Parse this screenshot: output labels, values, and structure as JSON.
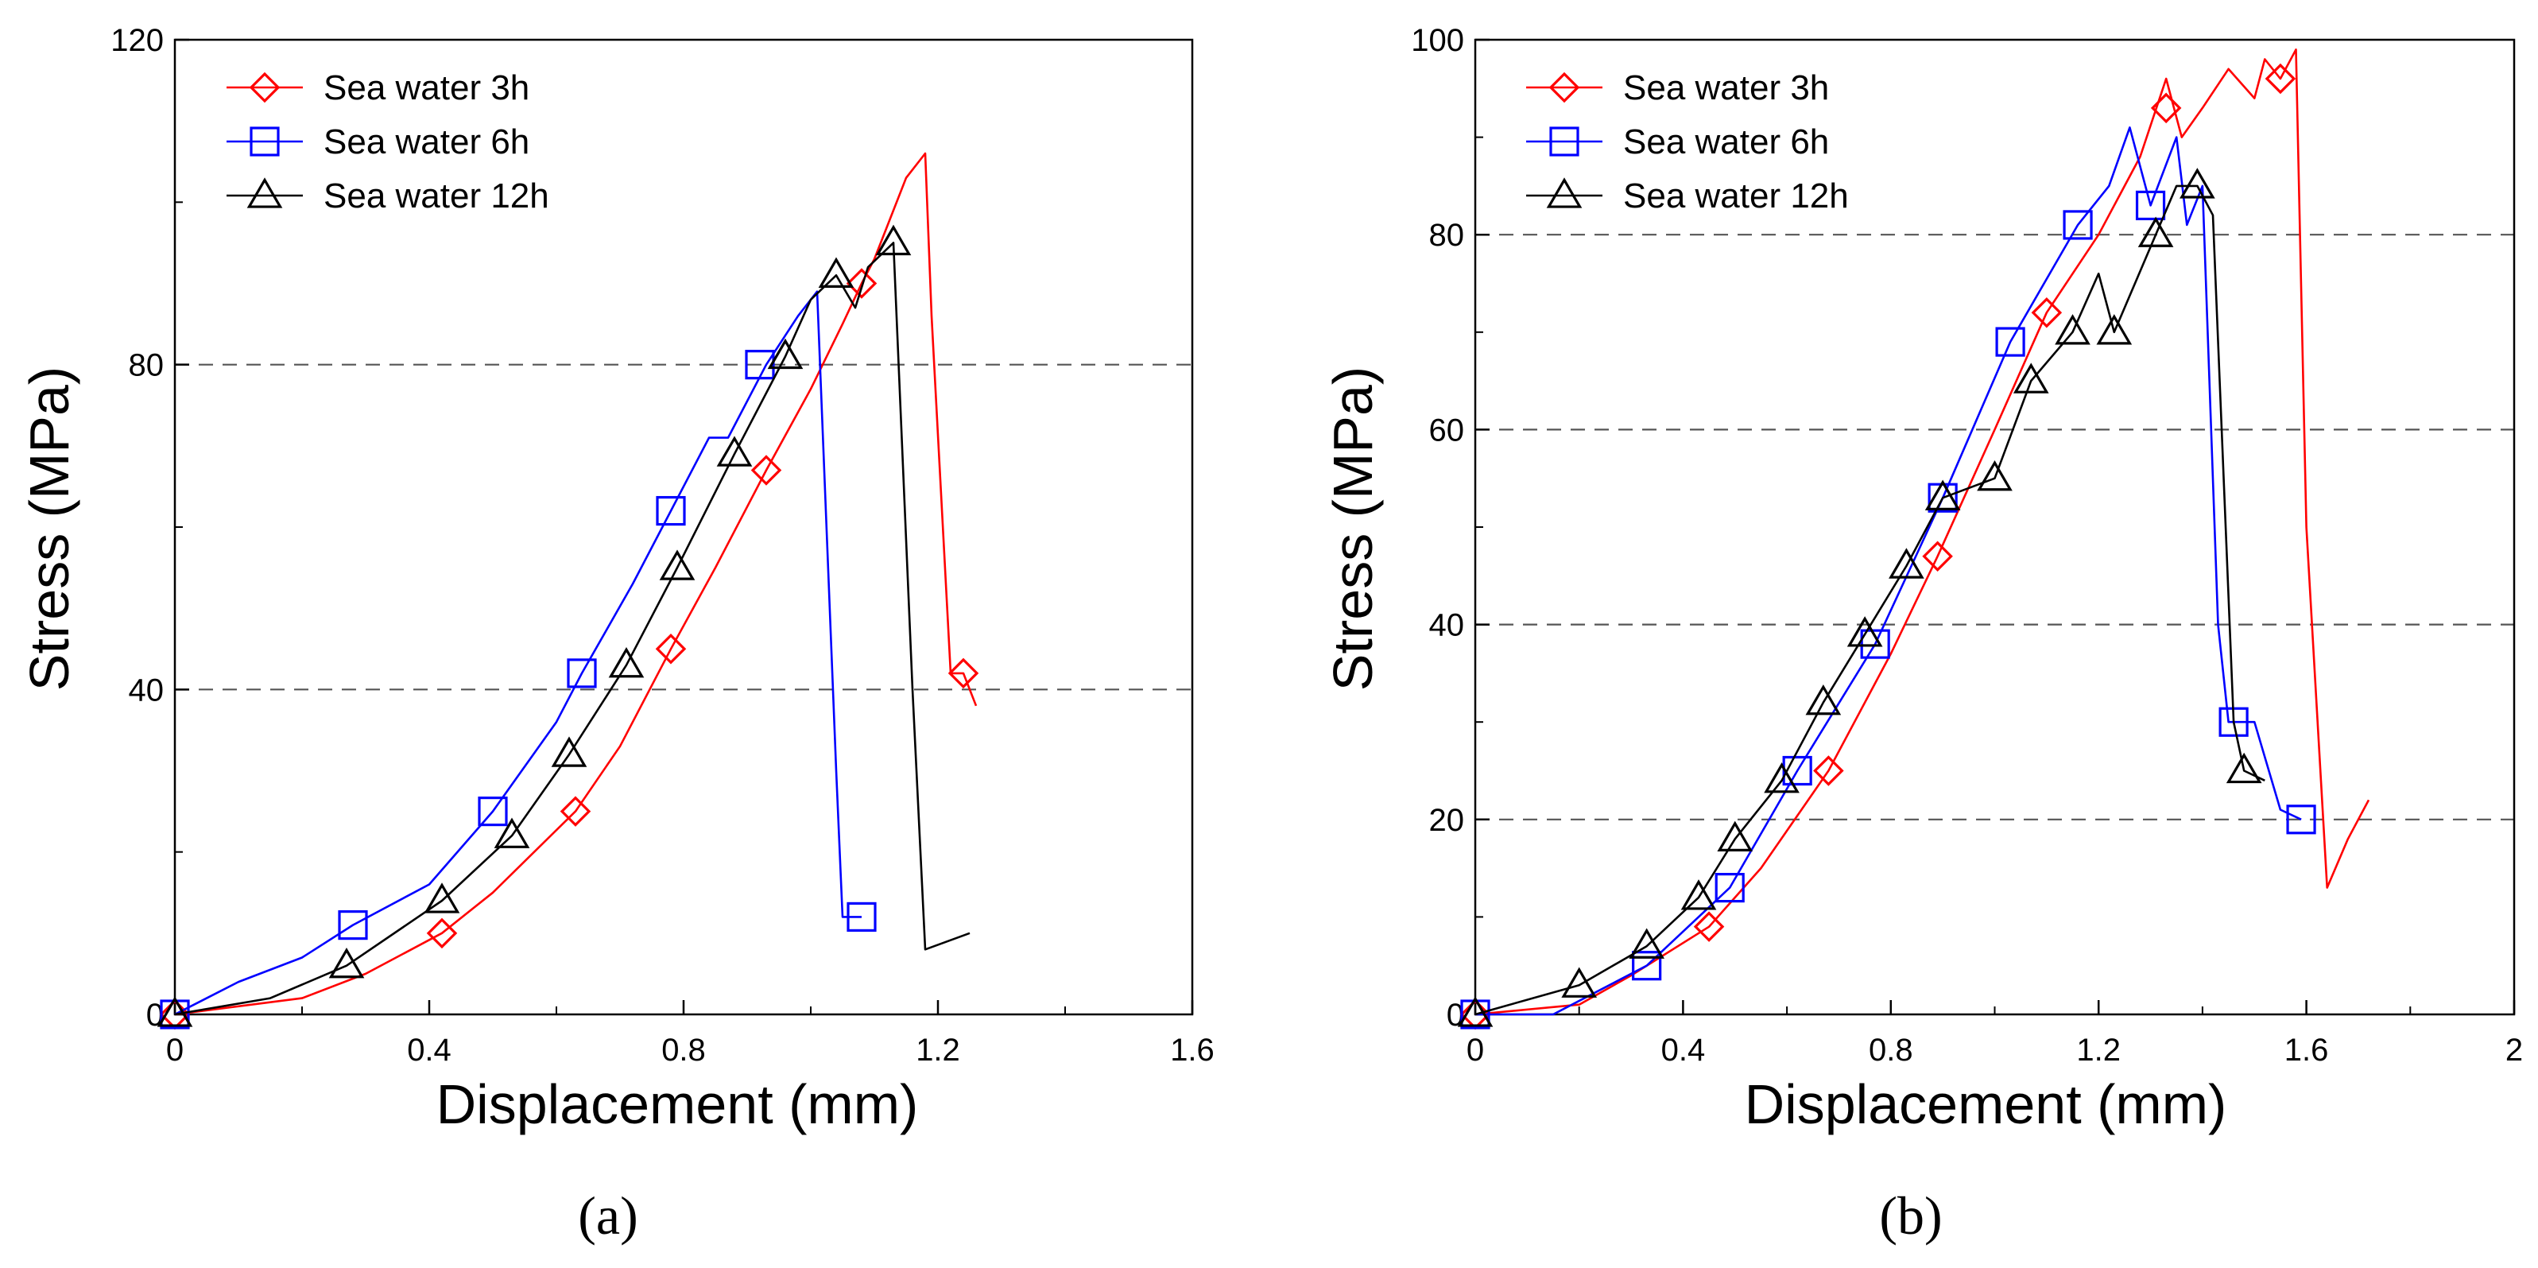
{
  "chart_data": [
    {
      "type": "line",
      "panel_label": "(a)",
      "xlabel": "Displacement (mm)",
      "ylabel": "Stress (MPa)",
      "xlim": [
        0,
        1.6
      ],
      "ylim": [
        0,
        120
      ],
      "xticks": [
        0,
        0.4,
        0.8,
        1.2,
        1.6
      ],
      "yticks": [
        0,
        40,
        80,
        120
      ],
      "xtick_labels": [
        "0",
        "0.4",
        "0.8",
        "1.2",
        "1.6"
      ],
      "ytick_labels": [
        "0",
        "40",
        "80",
        "120"
      ],
      "grid_dashed_y": [
        40,
        80
      ],
      "legend_position": "top-left",
      "series": [
        {
          "name": "Sea water 3h",
          "color": "#ff0000",
          "marker": "diamond",
          "x": [
            0,
            0.2,
            0.3,
            0.42,
            0.5,
            0.63,
            0.7,
            0.78,
            0.85,
            0.93,
            1.0,
            1.05,
            1.08,
            1.1,
            1.15,
            1.18,
            1.19,
            1.22,
            1.24,
            1.26
          ],
          "y": [
            0,
            2,
            5,
            10,
            15,
            25,
            33,
            45,
            55,
            67,
            77,
            85,
            90,
            93,
            103,
            106,
            86,
            42,
            42,
            38
          ],
          "markers_x": [
            0,
            0.42,
            0.63,
            0.78,
            0.93,
            1.08,
            1.24
          ],
          "markers_y": [
            0,
            10,
            25,
            45,
            67,
            90,
            42
          ]
        },
        {
          "name": "Sea water 6h",
          "color": "#0000ff",
          "marker": "square",
          "x": [
            0,
            0.1,
            0.2,
            0.28,
            0.4,
            0.5,
            0.6,
            0.64,
            0.72,
            0.78,
            0.84,
            0.87,
            0.93,
            0.98,
            1.01,
            1.04,
            1.05,
            1.08
          ],
          "y": [
            0,
            4,
            7,
            11,
            16,
            25,
            36,
            42,
            53,
            62,
            71,
            71,
            80,
            86,
            89,
            30,
            12,
            12
          ],
          "markers_x": [
            0,
            0.28,
            0.5,
            0.64,
            0.78,
            0.92,
            1.08
          ],
          "markers_y": [
            0,
            11,
            25,
            42,
            62,
            80,
            12
          ]
        },
        {
          "name": "Sea water 12h",
          "color": "#000000",
          "marker": "triangle",
          "x": [
            0,
            0.15,
            0.27,
            0.42,
            0.53,
            0.62,
            0.71,
            0.79,
            0.88,
            0.96,
            1.0,
            1.04,
            1.07,
            1.09,
            1.13,
            1.16,
            1.18,
            1.25
          ],
          "y": [
            0,
            2,
            6,
            14,
            22,
            32,
            43,
            55,
            69,
            81,
            88,
            91,
            87,
            92,
            95,
            40,
            8,
            10
          ],
          "markers_x": [
            0,
            0.27,
            0.42,
            0.53,
            0.62,
            0.71,
            0.79,
            0.88,
            0.96,
            1.04,
            1.13
          ],
          "markers_y": [
            0,
            6,
            14,
            22,
            32,
            43,
            55,
            69,
            81,
            91,
            95
          ]
        }
      ]
    },
    {
      "type": "line",
      "panel_label": "(b)",
      "xlabel": "Displacement (mm)",
      "ylabel": "Stress (MPa)",
      "xlim": [
        0,
        2
      ],
      "ylim": [
        0,
        100
      ],
      "xticks": [
        0,
        0.4,
        0.8,
        1.2,
        1.6,
        2
      ],
      "yticks": [
        0,
        20,
        40,
        60,
        80,
        100
      ],
      "xtick_labels": [
        "0",
        "0.4",
        "0.8",
        "1.2",
        "1.6",
        "2"
      ],
      "ytick_labels": [
        "0",
        "20",
        "40",
        "60",
        "80",
        "100"
      ],
      "grid_dashed_y": [
        20,
        40,
        60,
        80
      ],
      "legend_position": "top-left",
      "series": [
        {
          "name": "Sea water 3h",
          "color": "#ff0000",
          "marker": "diamond",
          "x": [
            0,
            0.2,
            0.3,
            0.45,
            0.55,
            0.68,
            0.8,
            0.89,
            1.0,
            1.1,
            1.2,
            1.28,
            1.33,
            1.36,
            1.4,
            1.45,
            1.5,
            1.52,
            1.55,
            1.58,
            1.6,
            1.64,
            1.68,
            1.72
          ],
          "y": [
            0,
            1,
            4,
            9,
            15,
            25,
            37,
            47,
            60,
            72,
            80,
            88,
            96,
            90,
            93,
            97,
            94,
            98,
            96,
            99,
            50,
            13,
            18,
            22
          ],
          "markers_x": [
            0,
            0.45,
            0.68,
            0.89,
            1.1,
            1.33,
            1.55
          ],
          "markers_y": [
            0,
            9,
            25,
            47,
            72,
            93,
            96
          ]
        },
        {
          "name": "Sea water 6h",
          "color": "#0000ff",
          "marker": "square",
          "x": [
            0,
            0.15,
            0.33,
            0.49,
            0.62,
            0.77,
            0.9,
            1.03,
            1.16,
            1.22,
            1.26,
            1.3,
            1.35,
            1.37,
            1.4,
            1.43,
            1.45,
            1.5,
            1.55,
            1.59
          ],
          "y": [
            0,
            0,
            5,
            13,
            25,
            38,
            53,
            69,
            81,
            85,
            91,
            83,
            90,
            81,
            85,
            40,
            30,
            30,
            21,
            20
          ],
          "markers_x": [
            0,
            0.33,
            0.49,
            0.62,
            0.77,
            0.9,
            1.03,
            1.16,
            1.3,
            1.46,
            1.59
          ],
          "markers_y": [
            0,
            5,
            13,
            25,
            38,
            53,
            69,
            81,
            83,
            30,
            20
          ]
        },
        {
          "name": "Sea water 12h",
          "color": "#000000",
          "marker": "triangle",
          "x": [
            0,
            0.2,
            0.33,
            0.43,
            0.5,
            0.59,
            0.67,
            0.75,
            0.83,
            0.9,
            1.0,
            1.07,
            1.15,
            1.2,
            1.23,
            1.31,
            1.35,
            1.39,
            1.42,
            1.46,
            1.48,
            1.52
          ],
          "y": [
            0,
            3,
            7,
            12,
            18,
            24,
            32,
            39,
            46,
            53,
            55,
            65,
            70,
            76,
            70,
            80,
            85,
            85,
            82,
            30,
            25,
            24
          ],
          "markers_x": [
            0,
            0.2,
            0.33,
            0.43,
            0.5,
            0.59,
            0.67,
            0.75,
            0.83,
            0.9,
            1.0,
            1.07,
            1.15,
            1.23,
            1.31,
            1.39,
            1.48
          ],
          "markers_y": [
            0,
            3,
            7,
            12,
            18,
            24,
            32,
            39,
            46,
            53,
            55,
            65,
            70,
            70,
            80,
            85,
            25
          ]
        }
      ]
    }
  ]
}
